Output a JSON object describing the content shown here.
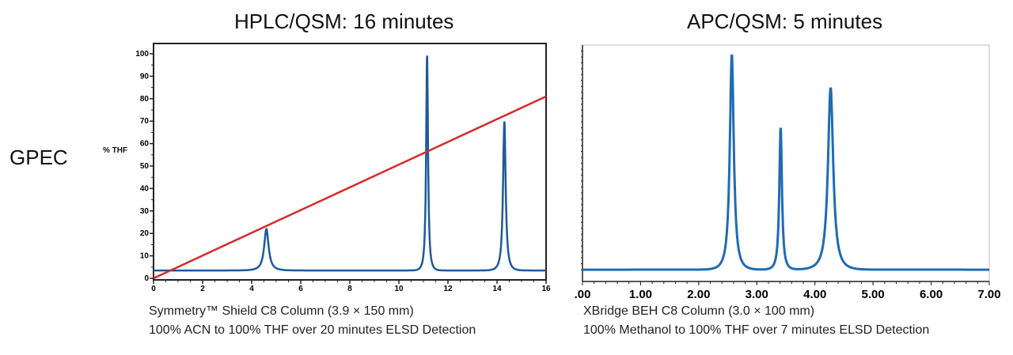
{
  "row_label": "GPEC",
  "chart_data": [
    {
      "type": "line",
      "title": "HPLC/QSM: 16 minutes",
      "ylabel": "% THF",
      "xlim": [
        0,
        16
      ],
      "ylim": [
        0,
        100
      ],
      "xticks": [
        0,
        2,
        4,
        6,
        8,
        10,
        12,
        14,
        16
      ],
      "yticks": [
        0,
        10,
        20,
        30,
        40,
        50,
        60,
        70,
        80,
        90,
        100
      ],
      "baseline": 3.5,
      "peaks": [
        {
          "x": 4.6,
          "height": 22,
          "width": 0.12
        },
        {
          "x": 11.15,
          "height": 100,
          "width": 0.05
        },
        {
          "x": 14.3,
          "height": 70,
          "width": 0.07
        }
      ],
      "gradient_line": {
        "x": [
          0,
          16
        ],
        "y": [
          0,
          81
        ],
        "color": "#d62a2a"
      },
      "trace_color": "#1f5a9a",
      "caption": [
        "Symmetry™ Shield C8 Column (3.9 × 150 mm)",
        "100% ACN to 100% THF over 20 minutes ELSD Detection"
      ]
    },
    {
      "type": "line",
      "title": "APC/QSM: 5 minutes",
      "xlim": [
        0,
        7
      ],
      "ylim": [
        0,
        100
      ],
      "xticks": [
        ".00",
        "1.00",
        "2.00",
        "3.00",
        "4.00",
        "5.00",
        "6.00",
        "7.00"
      ],
      "baseline": 5,
      "peaks": [
        {
          "x": 2.57,
          "height": 96,
          "width": 0.045
        },
        {
          "x": 3.41,
          "height": 65,
          "width": 0.03
        },
        {
          "x": 4.27,
          "height": 82,
          "width": 0.06
        }
      ],
      "trace_color": "#1f6bb5",
      "caption": [
        "XBridge BEH C8 Column (3.0 × 100 mm)",
        "100% Methanol to 100% THF over 7 minutes ELSD Detection"
      ]
    }
  ]
}
